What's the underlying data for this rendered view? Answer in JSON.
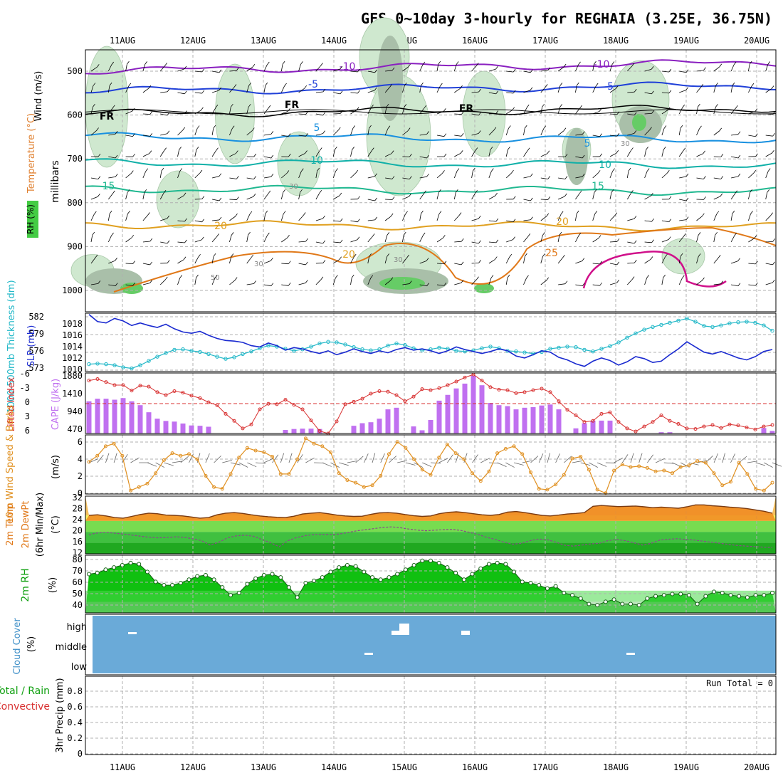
{
  "title": "GFS 0~10day 3-hourly for REGHAIA (3.25E, 36.75N)",
  "dates": [
    "11AUG",
    "12AUG",
    "13AUG",
    "14AUG",
    "15AUG",
    "16AUG",
    "17AUG",
    "18AUG",
    "19AUG",
    "20AUG"
  ],
  "colors": {
    "grid": "#b0b0b0",
    "thickness": "#22b8c8",
    "slp": "#1a2ad0",
    "cape_bar": "#c070f0",
    "lifted_index": "#d83030",
    "wind_speed": "#e09020",
    "temp_fill": "#f08820",
    "temp_band": "#f4c060",
    "dewpt_fill": "#30c030",
    "rh_fill": "#10c010",
    "cloud_bg": "#6aaad8",
    "rh_shade": "#cfe8cf"
  },
  "panels": {
    "upper_air": {
      "ylabel_wind": "Wind (m/s)",
      "ylabel_temp": "Temperature (°C)",
      "ylabel_unit": "millibars",
      "ylabel_rh": "RH (%)",
      "pressure_ticks": [
        "500",
        "600",
        "700",
        "800",
        "900",
        "1000"
      ],
      "isotherm_labels": [
        "-10",
        "-10",
        "-5",
        "-5",
        "FR",
        "FR",
        "FR",
        "5",
        "5",
        "10",
        "10",
        "-15",
        "15",
        "20",
        "20",
        "20",
        "25"
      ],
      "rh_labels": [
        "30",
        "30",
        "30",
        "50",
        "30"
      ]
    },
    "thickness_slp": {
      "ylabel_thk": "1000-500mb Thickness (dm)",
      "ylabel_slp": "SLP (mb)",
      "thk_ticks": [
        "582",
        "579",
        "576",
        "573"
      ],
      "slp_ticks": [
        "1018",
        "1016",
        "1014",
        "1012",
        "1010"
      ]
    },
    "cape_li": {
      "ylabel_li": "Lifted Index",
      "ylabel_cape": "CAPE (J/kg)",
      "li_ticks": [
        "-6",
        "-3",
        "0",
        "3",
        "6"
      ],
      "cape_ticks": [
        "1880",
        "1410",
        "940",
        "470"
      ]
    },
    "wind10m": {
      "ylabel": "10m Wind Speed & Barbs",
      "unit": "(m/s)",
      "ticks": [
        "6",
        "4",
        "2",
        "0"
      ]
    },
    "temp2m": {
      "ylabel1": "2m Temp",
      "ylabel2": "2m DewPt",
      "ylabel3": "(6hr Min/Max)",
      "unit": "(°C)",
      "ticks": [
        "32",
        "28",
        "24",
        "20",
        "16",
        "12"
      ]
    },
    "rh2m": {
      "ylabel": "2m RH",
      "unit": "(%)",
      "ticks": [
        "80",
        "70",
        "60",
        "50",
        "40"
      ]
    },
    "cloud": {
      "ylabel": "Cloud Cover",
      "unit": "(%)",
      "levels": [
        "high",
        "middle",
        "low"
      ]
    },
    "precip": {
      "ylabel1": "Total / Rain",
      "ylabel2": "Convective",
      "ylabel3": "3hr Precip (mm)",
      "run_total": "Run Total = 0",
      "ticks": [
        "0.8",
        "0.6",
        "0.4",
        "0.2",
        "0"
      ]
    }
  },
  "chart_data": [
    {
      "type": "line",
      "name": "1000-500mb thickness",
      "unit": "dm",
      "ylim": [
        572,
        583
      ],
      "values": [
        573.4,
        573.5,
        573.4,
        573.2,
        572.8,
        572.6,
        573.2,
        574,
        574.8,
        575.5,
        576.1,
        576.2,
        575.9,
        575.7,
        575.3,
        574.8,
        574.4,
        574.7,
        575.3,
        575.8,
        576.4,
        576.9,
        576.7,
        576.3,
        575.9,
        576.2,
        576.7,
        577.3,
        577.6,
        577.5,
        577.1,
        576.6,
        576.2,
        576.0,
        576.2,
        576.9,
        577.3,
        577.0,
        576.4,
        576.0,
        576.2,
        576.5,
        576.3,
        575.9,
        575.8,
        576.0,
        576.4,
        576.7,
        576.4,
        575.9,
        575.8,
        575.6,
        575.4,
        575.7,
        576.3,
        576.5,
        576.7,
        576.6,
        576.1,
        575.8,
        576.3,
        576.8,
        577.5,
        578.4,
        579.2,
        579.9,
        580.4,
        580.8,
        581.2,
        581.6,
        582.0,
        581.4,
        580.6,
        580.4,
        580.7,
        581.1,
        581.3,
        581.4,
        581.2,
        580.7,
        579.7
      ]
    },
    {
      "type": "line",
      "name": "SLP",
      "unit": "mb",
      "ylim": [
        1010,
        1019
      ],
      "values": [
        1018.8,
        1017.7,
        1017.5,
        1018.2,
        1017.8,
        1017.1,
        1017.5,
        1017.1,
        1016.8,
        1017.3,
        1016.6,
        1016.1,
        1015.9,
        1016.2,
        1015.6,
        1015.1,
        1014.8,
        1014.7,
        1014.5,
        1014.0,
        1013.8,
        1014.4,
        1014.0,
        1013.3,
        1013.7,
        1013.5,
        1013.1,
        1012.8,
        1013.2,
        1012.6,
        1013.0,
        1013.5,
        1013.1,
        1012.8,
        1013.2,
        1012.9,
        1013.4,
        1013.7,
        1013.3,
        1013.5,
        1013.2,
        1012.8,
        1013.2,
        1013.8,
        1013.4,
        1013.1,
        1012.8,
        1013.1,
        1013.5,
        1013.2,
        1012.4,
        1012.1,
        1012.6,
        1013.2,
        1013.0,
        1012.2,
        1011.8,
        1011.2,
        1010.8,
        1011.6,
        1012.1,
        1011.7,
        1011.0,
        1011.5,
        1012.3,
        1012.0,
        1011.4,
        1011.6,
        1012.6,
        1013.5,
        1014.6,
        1013.8,
        1013.0,
        1012.7,
        1013.1,
        1012.6,
        1012.1,
        1011.8,
        1012.3,
        1013.1,
        1013.4
      ]
    },
    {
      "type": "bar",
      "name": "CAPE",
      "unit": "J/kg",
      "ylim": [
        0,
        1880
      ],
      "values": [
        1000,
        1080,
        1080,
        1050,
        1100,
        1000,
        880,
        660,
        460,
        390,
        370,
        310,
        250,
        240,
        210,
        0,
        0,
        0,
        0,
        0,
        0,
        0,
        0,
        110,
        140,
        150,
        150,
        140,
        0,
        0,
        0,
        240,
        320,
        350,
        460,
        750,
        800,
        0,
        220,
        100,
        420,
        1020,
        1200,
        1400,
        1550,
        1800,
        1500,
        950,
        880,
        850,
        750,
        800,
        820,
        870,
        900,
        750,
        0,
        160,
        320,
        400,
        400,
        400,
        0,
        0,
        0,
        0,
        0,
        40,
        40,
        0,
        0,
        0,
        0,
        0,
        0,
        0,
        0,
        0,
        0,
        170,
        80
      ]
    },
    {
      "type": "line",
      "name": "Lifted Index",
      "unit": "K",
      "ylim": [
        6,
        -6
      ],
      "values": [
        -4.5,
        -4.8,
        -4.2,
        -3.6,
        -3.6,
        -2.5,
        -3.5,
        -3.3,
        -2.2,
        -1.6,
        -2.4,
        -2.1,
        -1.5,
        -1.0,
        -0.2,
        0.4,
        2.1,
        3.5,
        5.0,
        4.2,
        1.2,
        0.1,
        0.2,
        -0.7,
        0.3,
        1.2,
        3.4,
        5.5,
        6.0,
        3.6,
        0.2,
        -0.3,
        -0.9,
        -1.9,
        -2.4,
        -2.3,
        -1.6,
        -0.4,
        -1.3,
        -2.8,
        -2.6,
        -3.0,
        -3.6,
        -4.3,
        -5.1,
        -5.7,
        -4.5,
        -3.2,
        -2.7,
        -2.6,
        -2.0,
        -2.2,
        -2.6,
        -2.9,
        -2.2,
        -0.4,
        1.3,
        2.4,
        3.7,
        3.5,
        2.1,
        1.8,
        3.7,
        5.0,
        5.6,
        4.6,
        3.7,
        2.4,
        3.5,
        4.1,
        5.0,
        5.1,
        4.6,
        4.3,
        4.9,
        4.2,
        4.4,
        4.8,
        5.2,
        4.6,
        4.3
      ]
    },
    {
      "type": "line",
      "name": "10m wind speed",
      "unit": "m/s",
      "ylim": [
        0,
        6.8
      ],
      "values": [
        3.7,
        4.4,
        5.5,
        5.8,
        4.4,
        0.4,
        0.8,
        1.2,
        2.4,
        3.9,
        4.7,
        4.4,
        4.6,
        4.0,
        2.1,
        0.8,
        0.6,
        2.3,
        4.2,
        5.3,
        5.0,
        4.8,
        4.3,
        2.3,
        2.3,
        4.0,
        6.4,
        5.8,
        5.5,
        4.8,
        2.4,
        1.6,
        1.3,
        0.8,
        1.0,
        2.1,
        4.6,
        6.0,
        5.3,
        4.0,
        2.8,
        2.2,
        4.2,
        5.7,
        4.7,
        4.0,
        2.4,
        1.5,
        2.6,
        4.7,
        5.2,
        5.5,
        4.6,
        2.5,
        0.6,
        0.5,
        1.1,
        2.2,
        4.1,
        4.3,
        2.8,
        0.5,
        0.1,
        2.7,
        3.4,
        3.1,
        3.2,
        3.0,
        2.6,
        2.7,
        2.4,
        3.1,
        3.3,
        3.8,
        3.6,
        2.4,
        1.0,
        1.4,
        3.6,
        2.3,
        0.6,
        0.4,
        1.3
      ]
    },
    {
      "type": "line",
      "name": "2m temperature",
      "unit": "°C",
      "ylim": [
        12,
        33
      ],
      "values": [
        26.0,
        26.2,
        25.8,
        25.2,
        25.0,
        25.6,
        26.3,
        26.8,
        26.6,
        26.1,
        26.0,
        25.8,
        25.4,
        25.0,
        25.2,
        26.2,
        26.8,
        27.0,
        26.7,
        26.2,
        25.8,
        25.5,
        25.3,
        25.2,
        25.7,
        26.5,
        26.8,
        27.0,
        26.6,
        26.1,
        25.8,
        25.6,
        25.7,
        26.4,
        26.9,
        27.0,
        26.8,
        26.3,
        25.9,
        25.6,
        25.8,
        26.6,
        27.1,
        27.3,
        27.0,
        26.6,
        26.2,
        26.0,
        26.3,
        27.2,
        27.4,
        27.0,
        26.5,
        26.0,
        25.8,
        26.1,
        26.5,
        26.7,
        27.0,
        29.3,
        29.6,
        29.4,
        29.2,
        29.3,
        29.4,
        29.1,
        28.8,
        29.0,
        28.8,
        28.6,
        29.1,
        29.8,
        29.8,
        29.5,
        29.3,
        29.0,
        28.8,
        28.5,
        28.0,
        27.5,
        26.8
      ]
    },
    {
      "type": "line",
      "name": "2m dew point",
      "unit": "°C",
      "ylim": [
        12,
        33
      ],
      "values": [
        19.0,
        19.6,
        19.8,
        19.5,
        19.2,
        18.8,
        18.4,
        18.0,
        17.8,
        17.9,
        18.2,
        18.0,
        17.5,
        16.8,
        15.2,
        16.2,
        17.8,
        18.5,
        18.8,
        18.4,
        17.2,
        16.0,
        14.6,
        16.8,
        17.9,
        18.6,
        19.0,
        19.1,
        19.0,
        19.2,
        19.8,
        20.4,
        20.8,
        21.2,
        21.6,
        21.8,
        21.5,
        21.0,
        20.6,
        20.4,
        20.6,
        20.8,
        20.9,
        20.5,
        19.8,
        19.0,
        18.0,
        17.2,
        16.2,
        15.5,
        15.8,
        16.8,
        17.4,
        17.1,
        16.2,
        15.1,
        14.8,
        15.2,
        15.6,
        15.8,
        16.8,
        17.2,
        16.8,
        16.0,
        15.2,
        15.8,
        17.0,
        17.3,
        17.5,
        17.2,
        17.0,
        16.6,
        16.2,
        15.8,
        15.4,
        15.0,
        14.8,
        14.6,
        14.4,
        14.3
      ]
    },
    {
      "type": "area",
      "name": "2m RH",
      "unit": "%",
      "ylim": [
        30,
        82
      ],
      "values": [
        65,
        66,
        69,
        71,
        73,
        75,
        74,
        67,
        58,
        55,
        55,
        57,
        60,
        63,
        64,
        60,
        53,
        46,
        48,
        56,
        61,
        64,
        65,
        62,
        53,
        44,
        57,
        59,
        62,
        67,
        71,
        73,
        72,
        67,
        62,
        60,
        62,
        65,
        69,
        73,
        77,
        77,
        75,
        71,
        66,
        60,
        65,
        70,
        74,
        75,
        74,
        67,
        58,
        57,
        55,
        52,
        54,
        48,
        46,
        43,
        38,
        37,
        40,
        42,
        38,
        38,
        37,
        43,
        45,
        46,
        47,
        47,
        46,
        38,
        45,
        49,
        48,
        46,
        45,
        44,
        46,
        46,
        48
      ]
    },
    {
      "type": "table",
      "name": "3hr precip",
      "unit": "mm",
      "run_total": 0,
      "values": []
    }
  ]
}
